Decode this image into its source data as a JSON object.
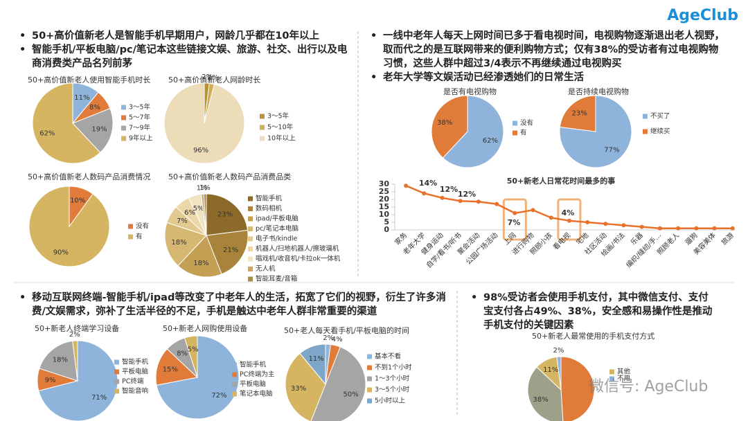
{
  "logo": "AgeClub",
  "watermark": "微信号: AgeClub",
  "sections": [
    {
      "bullets": [
        "50+高价值新老人是智能手机早期用户，网龄几乎都在10年以上",
        "智能手机/平板电脑/pc/笔记本这些链接文娱、旅游、社交、出行以及电商消费类产品名列前茅"
      ]
    },
    {
      "bullets": [
        "一线中老年人每天上网时间已多于看电视时间，电视购物逐渐退出老人视野，取而代之的是互联网带来的便利购物方式；仅有38%的受访者有过电视购物习惯，这些人群中超过3/4表示不再继续通过电视购买",
        "老年大学等文娱活动已经渗透她们的日常生活"
      ]
    },
    {
      "bullets": [
        "移动互联网终端-智能手机/ipad等改变了中老年人的生活，拓宽了它们的视野，衍生了许多消费/文娱需求，弥补了生活半径的不足，手机是触达中老年人群非常重要的渠道"
      ]
    },
    {
      "bullets": [
        "98%受访者会使用手机支付，其中微信支付、支付宝支付各占49%、38%，安全感和易操作性是推动手机支付的关键因素"
      ]
    }
  ],
  "chart_data": [
    {
      "type": "pie",
      "title": "50+高价值新老人使用智能手机时长",
      "categories": [
        "3～5年",
        "5～7年",
        "7～9年",
        "9年以上"
      ],
      "values": [
        11,
        8,
        19,
        62
      ],
      "value_labels": [
        "11%",
        "8%",
        "19%",
        "62%"
      ],
      "colors": [
        "#8fb4dc",
        "#e07b39",
        "#a5a5a5",
        "#d5b561"
      ]
    },
    {
      "type": "pie",
      "title": "50+高价值新老人网龄时长",
      "categories": [
        "3～5年",
        "5～10年",
        "10年以上"
      ],
      "values": [
        2,
        2,
        96
      ],
      "value_labels": [
        "2%",
        "2%",
        "96%"
      ],
      "colors": [
        "#b8923a",
        "#cfad5c",
        "#ecdcb8"
      ]
    },
    {
      "type": "pie",
      "title": "50+高价值新老人数码产品消费情况",
      "categories": [
        "没有",
        "有"
      ],
      "values": [
        10,
        90
      ],
      "value_labels": [
        "10%",
        "90%"
      ],
      "colors": [
        "#e07b39",
        "#d5b561"
      ]
    },
    {
      "type": "pie",
      "title": "50+高价值新老人数码产品消费品类",
      "categories": [
        "智能手机",
        "数码相机",
        "ipad/平板电脑",
        "pc/笔记本电脑",
        "电子书/kindle",
        "机器人/扫地机器人/擦玻璃机",
        "唱戏机/收音机/卡拉ok一体机",
        "无人机",
        "智能耳麦/音箱"
      ],
      "values": [
        23,
        21,
        18,
        18,
        7,
        6,
        5,
        1,
        1
      ],
      "value_labels": [
        "23%",
        "21%",
        "18%",
        "18%",
        "7%",
        "6%",
        "5%",
        "1%",
        "1%"
      ],
      "colors": [
        "#8c6b2a",
        "#a8843a",
        "#c4a055",
        "#d6b872",
        "#e2c98f",
        "#ead7aa",
        "#f0e3c2",
        "#c9a76a",
        "#a68a50"
      ]
    },
    {
      "type": "pie",
      "title": "是否有电视购物",
      "categories": [
        "没有",
        "有"
      ],
      "values": [
        62,
        38
      ],
      "value_labels": [
        "62%",
        "38%"
      ],
      "colors": [
        "#8fb4dc",
        "#e07b39"
      ]
    },
    {
      "type": "pie",
      "title": "是否持续电视购物",
      "categories": [
        "不买了",
        "继续买"
      ],
      "values": [
        77,
        23
      ],
      "value_labels": [
        "77%",
        "23%"
      ],
      "colors": [
        "#8fb4dc",
        "#e07b39"
      ]
    },
    {
      "type": "line",
      "title": "50+新老人日常花时间最多的事",
      "categories": [
        "家务",
        "老年大学",
        "健身运动",
        "自学/看书/听书",
        "聚会活动",
        "公园广场活动",
        "上网",
        "进行购物",
        "照顾小孩",
        "看电视",
        "宅地",
        "社区活动",
        "绘画/书法",
        "乐器",
        "编织/缝纫/手...",
        "照顾老人",
        "遛狗",
        "美容美体",
        "旅游"
      ],
      "values": [
        29,
        24,
        21,
        19,
        18.5,
        17,
        11,
        13,
        8,
        6,
        5,
        4,
        3,
        2,
        1,
        1,
        1,
        1,
        1
      ],
      "color": "#e8722b",
      "ylim": [
        0,
        30
      ],
      "yticks": [
        0,
        5,
        10,
        15,
        20,
        25,
        30
      ],
      "annotations": [
        "14%",
        "12%",
        "12%",
        "7%",
        "4%"
      ]
    },
    {
      "type": "pie",
      "title": "50+新老人终端学习设备",
      "categories": [
        "智能手机",
        "平板电脑",
        "PC终端",
        "智能音响"
      ],
      "values": [
        71,
        9,
        18,
        2
      ],
      "value_labels": [
        "71%",
        "9%",
        "18%",
        "2%"
      ],
      "colors": [
        "#8fb4dc",
        "#e07b39",
        "#a5a5a5",
        "#d5b561"
      ]
    },
    {
      "type": "pie",
      "title": "50+新老人网购使用设备",
      "categories": [
        "智能手机",
        "PC终端为主",
        "平板电脑",
        "笔记本电脑"
      ],
      "values": [
        72,
        15,
        8,
        5
      ],
      "value_labels": [
        "72%",
        "15%",
        "8%",
        "5%"
      ],
      "colors": [
        "#8fb4dc",
        "#e07b39",
        "#a5a5a5",
        "#d5b561"
      ]
    },
    {
      "type": "pie",
      "title": "50+老人每天看手机/平板电脑的时间",
      "categories": [
        "基本不看",
        "不到1个小时",
        "1～3个小时",
        "3～5个小时",
        "5小时以上"
      ],
      "values": [
        2,
        4,
        50,
        33,
        11
      ],
      "value_labels": [
        "2%",
        "4%",
        "50%",
        "33%",
        "11%"
      ],
      "colors": [
        "#8fb4dc",
        "#e07b39",
        "#a5a5a5",
        "#d5b561",
        "#7ea6c9"
      ]
    },
    {
      "type": "pie",
      "title": "50+新老人最常使用的手机支付方式",
      "categories": [
        null,
        null,
        "其他",
        "不用"
      ],
      "values": [
        49,
        38,
        11,
        2
      ],
      "value_labels": [
        null,
        "38%",
        "11%",
        "2%"
      ],
      "colors": [
        "#e07b39",
        "#9fa089",
        "#d5b561",
        "#8fb4dc"
      ]
    }
  ]
}
